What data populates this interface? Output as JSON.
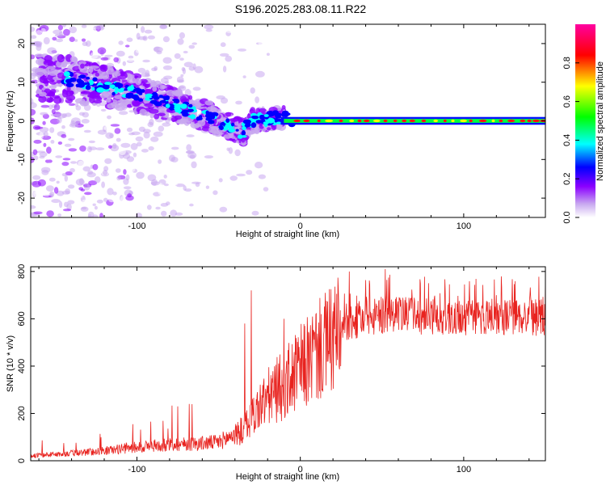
{
  "title": "S196.2025.283.08.11.R22",
  "chart_data": [
    {
      "type": "heatmap",
      "name": "spectrogram",
      "xlabel": "Height of straight line (km)",
      "ylabel": "Frequency (Hz)",
      "xlim": [
        -165,
        150
      ],
      "ylim": [
        -25,
        25
      ],
      "xticks": [
        -100,
        0,
        100
      ],
      "yticks": [
        20,
        10,
        0,
        -10,
        -20
      ],
      "xtick_labels": [
        "-100",
        "0",
        "100"
      ],
      "ytick_labels": [
        "20",
        "10",
        "0",
        "-10",
        "-20"
      ],
      "ridge": {
        "description": "frequency of the dominant ridge vs height",
        "x": [
          -145,
          -120,
          -100,
          -85,
          -70,
          -55,
          -45,
          -35,
          -30,
          -20,
          -10,
          0,
          50,
          100,
          150
        ],
        "freq": [
          11,
          9,
          7,
          5,
          3,
          1,
          -1,
          -3,
          0,
          0.5,
          1,
          0,
          0,
          0,
          0
        ]
      },
      "colorbar": {
        "label": "Normalized spectral amplitude",
        "range": [
          0,
          1
        ],
        "ticks": [
          0.0,
          0.2,
          0.4,
          0.6,
          0.8
        ],
        "tick_labels": [
          "0.0",
          "0.2",
          "0.4",
          "0.6",
          "0.8"
        ],
        "colormap": [
          "#ffffff",
          "#8b00ff",
          "#0000ff",
          "#00ffff",
          "#00ff00",
          "#ffff00",
          "#ff0000",
          "#ff00ff"
        ]
      }
    },
    {
      "type": "line",
      "name": "snr",
      "xlabel": "Height of straight line (km)",
      "ylabel": "SNR (10 * v/v)",
      "xlim": [
        -165,
        150
      ],
      "ylim": [
        0,
        820
      ],
      "xticks": [
        -100,
        0,
        100
      ],
      "yticks": [
        0,
        200,
        400,
        600,
        800
      ],
      "xtick_labels": [
        "-100",
        "0",
        "100"
      ],
      "ytick_labels": [
        "0",
        "200",
        "400",
        "600",
        "800"
      ],
      "color": "#e8231f",
      "envelope": {
        "x": [
          -165,
          -140,
          -120,
          -100,
          -80,
          -60,
          -50,
          -45,
          -40,
          -35,
          -30,
          -25,
          -20,
          -15,
          -10,
          -5,
          0,
          10,
          20,
          30,
          40,
          60,
          80,
          100,
          120,
          150
        ],
        "y": [
          20,
          30,
          40,
          55,
          65,
          70,
          75,
          90,
          110,
          140,
          190,
          240,
          280,
          310,
          340,
          370,
          410,
          480,
          540,
          590,
          620,
          630,
          625,
          620,
          625,
          620
        ]
      },
      "spikes": [
        {
          "x": -30,
          "y": 720
        },
        {
          "x": -34,
          "y": 580
        },
        {
          "x": -10,
          "y": 600
        },
        {
          "x": 52,
          "y": 810
        },
        {
          "x": 30,
          "y": 800
        },
        {
          "x": -68,
          "y": 240
        },
        {
          "x": -75,
          "y": 230
        }
      ]
    }
  ]
}
